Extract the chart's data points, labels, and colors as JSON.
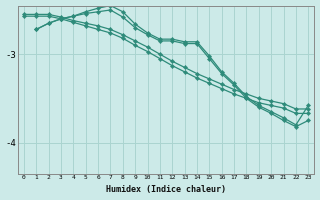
{
  "xlabel": "Humidex (Indice chaleur)",
  "background_color": "#cceae8",
  "grid_color": "#aad4d0",
  "line_color": "#2e8b7a",
  "xlim": [
    -0.5,
    23.5
  ],
  "ylim": [
    -4.35,
    -2.45
  ],
  "yticks": [
    -4,
    -3
  ],
  "x_ticks": [
    0,
    1,
    2,
    3,
    4,
    5,
    6,
    7,
    8,
    9,
    10,
    11,
    12,
    13,
    14,
    15,
    16,
    17,
    18,
    19,
    20,
    21,
    22,
    23
  ],
  "lines": [
    {
      "x": [
        0,
        1,
        2,
        3,
        4,
        5,
        6,
        7,
        8,
        9,
        10,
        11,
        12,
        13,
        14,
        15,
        16,
        17,
        18,
        19,
        20,
        21,
        22,
        23
      ],
      "y": [
        -2.55,
        -2.55,
        -2.55,
        -2.58,
        -2.62,
        -2.65,
        -2.68,
        -2.72,
        -2.78,
        -2.85,
        -2.92,
        -3.0,
        -3.08,
        -3.15,
        -3.22,
        -3.28,
        -3.34,
        -3.4,
        -3.45,
        -3.5,
        -3.53,
        -3.56,
        -3.62,
        -3.62
      ]
    },
    {
      "x": [
        0,
        1,
        2,
        3,
        4,
        5,
        6,
        7,
        8,
        9,
        10,
        11,
        12,
        13,
        14,
        15,
        16,
        17,
        18,
        19,
        20,
        21,
        22,
        23
      ],
      "y": [
        -2.57,
        -2.57,
        -2.57,
        -2.6,
        -2.64,
        -2.68,
        -2.72,
        -2.76,
        -2.82,
        -2.9,
        -2.97,
        -3.05,
        -3.13,
        -3.2,
        -3.27,
        -3.33,
        -3.39,
        -3.45,
        -3.5,
        -3.55,
        -3.58,
        -3.61,
        -3.67,
        -3.67
      ]
    },
    {
      "x": [
        1,
        2,
        3,
        4,
        5,
        6,
        7,
        8,
        9,
        10,
        11,
        12,
        13,
        14,
        15,
        16,
        17,
        18,
        19,
        20,
        21,
        22,
        23
      ],
      "y": [
        -2.72,
        -2.65,
        -2.6,
        -2.57,
        -2.54,
        -2.52,
        -2.5,
        -2.58,
        -2.7,
        -2.78,
        -2.85,
        -2.85,
        -2.88,
        -2.88,
        -3.05,
        -3.22,
        -3.35,
        -3.5,
        -3.6,
        -3.67,
        -3.75,
        -3.82,
        -3.75
      ]
    },
    {
      "x": [
        1,
        2,
        3,
        4,
        5,
        6,
        7,
        8,
        9,
        10,
        11,
        12,
        13,
        14,
        15,
        16,
        17,
        18,
        19,
        20,
        21,
        22,
        23
      ],
      "y": [
        -2.72,
        -2.65,
        -2.6,
        -2.57,
        -2.52,
        -2.48,
        -2.45,
        -2.52,
        -2.66,
        -2.76,
        -2.83,
        -2.83,
        -2.86,
        -2.86,
        -3.02,
        -3.2,
        -3.33,
        -3.48,
        -3.58,
        -3.65,
        -3.72,
        -3.8,
        -3.58
      ]
    }
  ]
}
